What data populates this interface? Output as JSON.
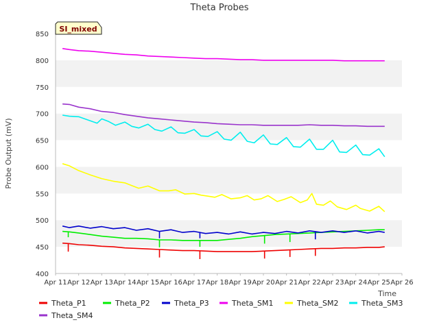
{
  "chart_data": {
    "type": "line",
    "title": "Theta Probes",
    "xlabel": "Time",
    "ylabel": "Probe Output (mV)",
    "badge": "SI_mixed",
    "xlim": [
      11,
      26
    ],
    "ylim": [
      400,
      850
    ],
    "x_ticks": [
      {
        "x": 11,
        "label": "Apr 11"
      },
      {
        "x": 12,
        "label": "Apr 12"
      },
      {
        "x": 13,
        "label": "Apr 13"
      },
      {
        "x": 14,
        "label": "Apr 14"
      },
      {
        "x": 15,
        "label": "Apr 15"
      },
      {
        "x": 16,
        "label": "Apr 16"
      },
      {
        "x": 17,
        "label": "Apr 17"
      },
      {
        "x": 18,
        "label": "Apr 18"
      },
      {
        "x": 19,
        "label": "Apr 19"
      },
      {
        "x": 20,
        "label": "Apr 20"
      },
      {
        "x": 21,
        "label": "Apr 21"
      },
      {
        "x": 22,
        "label": "Apr 22"
      },
      {
        "x": 23,
        "label": "Apr 23"
      },
      {
        "x": 24,
        "label": "Apr 24"
      },
      {
        "x": 25,
        "label": "Apr 25"
      },
      {
        "x": 26,
        "label": "Apr 26"
      }
    ],
    "y_ticks": [
      400,
      450,
      500,
      550,
      600,
      650,
      700,
      750,
      800,
      850
    ],
    "grid": "horizontal bands",
    "legend_position": "bottom",
    "series": [
      {
        "name": "Theta_P1",
        "color": "#ee0000",
        "x": [
          11.3,
          11.6,
          12.0,
          12.5,
          13.0,
          13.5,
          14.0,
          14.5,
          15.0,
          15.5,
          16.0,
          16.5,
          17.0,
          17.5,
          18.0,
          18.5,
          19.0,
          19.5,
          20.0,
          20.5,
          21.0,
          21.5,
          22.0,
          22.5,
          23.0,
          23.5,
          24.0,
          24.5,
          25.0,
          25.25
        ],
        "y": [
          457,
          456,
          454,
          453,
          451,
          450,
          448,
          447,
          446,
          445,
          444,
          443,
          443,
          442,
          441,
          441,
          441,
          441,
          442,
          443,
          444,
          445,
          446,
          447,
          447,
          448,
          448,
          449,
          449,
          450
        ]
      },
      {
        "name": "Theta_P2",
        "color": "#00ee00",
        "x": [
          11.3,
          11.6,
          12.0,
          12.5,
          13.0,
          13.5,
          14.0,
          14.5,
          15.0,
          15.5,
          16.0,
          16.5,
          17.0,
          17.5,
          18.0,
          18.5,
          19.0,
          19.5,
          20.0,
          20.5,
          21.0,
          21.5,
          22.0,
          22.5,
          23.0,
          23.5,
          24.0,
          24.5,
          25.0,
          25.25
        ],
        "y": [
          479,
          478,
          476,
          473,
          470,
          468,
          466,
          466,
          465,
          463,
          463,
          462,
          462,
          462,
          462,
          464,
          466,
          469,
          471,
          473,
          474,
          475,
          476,
          477,
          478,
          479,
          480,
          481,
          482,
          482
        ]
      },
      {
        "name": "Theta_P3",
        "color": "#0000cc",
        "x": [
          11.3,
          11.6,
          12.0,
          12.5,
          13.0,
          13.5,
          14.0,
          14.5,
          15.0,
          15.5,
          16.0,
          16.5,
          17.0,
          17.5,
          18.0,
          18.5,
          19.0,
          19.5,
          20.0,
          20.5,
          21.0,
          21.5,
          22.0,
          22.5,
          23.0,
          23.5,
          24.0,
          24.5,
          25.0,
          25.25
        ],
        "y": [
          489,
          486,
          489,
          485,
          488,
          484,
          486,
          481,
          484,
          479,
          482,
          477,
          479,
          475,
          477,
          474,
          478,
          474,
          477,
          475,
          479,
          476,
          480,
          477,
          480,
          477,
          480,
          476,
          479,
          477
        ]
      },
      {
        "name": "Theta_SM1",
        "color": "#ee00ee",
        "x": [
          11.3,
          11.6,
          12.0,
          12.5,
          13.0,
          13.5,
          14.0,
          14.5,
          15.0,
          15.5,
          16.0,
          16.5,
          17.0,
          17.5,
          18.0,
          18.5,
          19.0,
          19.5,
          20.0,
          20.5,
          21.0,
          21.5,
          22.0,
          22.5,
          23.0,
          23.5,
          24.0,
          24.5,
          25.0,
          25.25
        ],
        "y": [
          822,
          820,
          818,
          817,
          815,
          813,
          811,
          810,
          808,
          807,
          806,
          805,
          804,
          803,
          803,
          802,
          801,
          801,
          800,
          800,
          800,
          800,
          800,
          800,
          800,
          799,
          799,
          799,
          799,
          799
        ]
      },
      {
        "name": "Theta_SM2",
        "color": "#ffff00",
        "x": [
          11.3,
          11.6,
          12.0,
          12.5,
          13.0,
          13.5,
          14.0,
          14.3,
          14.6,
          15.0,
          15.5,
          15.9,
          16.2,
          16.6,
          17.0,
          17.3,
          17.6,
          17.9,
          18.2,
          18.6,
          19.0,
          19.3,
          19.6,
          19.9,
          20.2,
          20.6,
          20.9,
          21.2,
          21.6,
          21.9,
          22.1,
          22.3,
          22.6,
          22.9,
          23.2,
          23.6,
          24.0,
          24.2,
          24.6,
          25.0,
          25.25
        ],
        "y": [
          606,
          602,
          593,
          585,
          578,
          573,
          570,
          565,
          560,
          564,
          555,
          555,
          557,
          549,
          550,
          547,
          545,
          543,
          548,
          540,
          542,
          546,
          538,
          540,
          546,
          535,
          539,
          544,
          533,
          538,
          550,
          530,
          528,
          536,
          525,
          520,
          528,
          522,
          517,
          526,
          516
        ]
      },
      {
        "name": "Theta_SM3",
        "color": "#00eeee",
        "x": [
          11.3,
          11.6,
          12.0,
          12.4,
          12.8,
          13.0,
          13.3,
          13.6,
          14.0,
          14.3,
          14.6,
          15.0,
          15.3,
          15.6,
          16.0,
          16.3,
          16.6,
          17.0,
          17.3,
          17.6,
          18.0,
          18.3,
          18.6,
          19.0,
          19.3,
          19.6,
          20.0,
          20.3,
          20.6,
          21.0,
          21.3,
          21.6,
          22.0,
          22.3,
          22.6,
          23.0,
          23.3,
          23.6,
          24.0,
          24.3,
          24.6,
          25.0,
          25.25
        ],
        "y": [
          697,
          695,
          694,
          688,
          682,
          690,
          685,
          678,
          684,
          676,
          673,
          680,
          670,
          667,
          675,
          664,
          663,
          670,
          658,
          657,
          666,
          652,
          650,
          665,
          648,
          645,
          660,
          643,
          642,
          655,
          638,
          637,
          652,
          633,
          633,
          650,
          628,
          627,
          641,
          623,
          622,
          634,
          619
        ]
      },
      {
        "name": "Theta_SM4",
        "color": "#9933cc",
        "x": [
          11.3,
          11.6,
          12.0,
          12.5,
          13.0,
          13.5,
          14.0,
          14.5,
          15.0,
          15.5,
          16.0,
          16.5,
          17.0,
          17.5,
          18.0,
          18.5,
          19.0,
          19.5,
          20.0,
          20.5,
          21.0,
          21.5,
          22.0,
          22.5,
          23.0,
          23.5,
          24.0,
          24.5,
          25.0,
          25.25
        ],
        "y": [
          718,
          717,
          712,
          709,
          704,
          702,
          698,
          695,
          692,
          690,
          688,
          686,
          684,
          683,
          681,
          680,
          679,
          679,
          678,
          678,
          678,
          678,
          679,
          678,
          678,
          677,
          677,
          676,
          676,
          676
        ]
      }
    ],
    "spikes": [
      {
        "series": "Theta_P1",
        "x": 11.55,
        "y": 441
      },
      {
        "series": "Theta_P1",
        "x": 15.5,
        "y": 430
      },
      {
        "series": "Theta_P1",
        "x": 17.25,
        "y": 427
      },
      {
        "series": "Theta_P1",
        "x": 20.05,
        "y": 428
      },
      {
        "series": "Theta_P1",
        "x": 21.15,
        "y": 431
      },
      {
        "series": "Theta_P1",
        "x": 22.25,
        "y": 433
      },
      {
        "series": "Theta_P2",
        "x": 11.55,
        "y": 468
      },
      {
        "series": "Theta_P2",
        "x": 15.5,
        "y": 449
      },
      {
        "series": "Theta_P2",
        "x": 17.25,
        "y": 450
      },
      {
        "series": "Theta_P2",
        "x": 20.05,
        "y": 456
      },
      {
        "series": "Theta_P2",
        "x": 21.15,
        "y": 459
      },
      {
        "series": "Theta_P3",
        "x": 15.5,
        "y": 466
      },
      {
        "series": "Theta_P3",
        "x": 17.25,
        "y": 466
      },
      {
        "series": "Theta_P3",
        "x": 22.25,
        "y": 464
      }
    ]
  }
}
